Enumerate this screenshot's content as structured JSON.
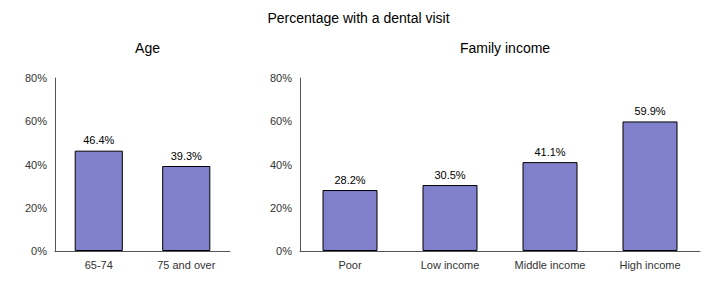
{
  "title": "Percentage with a dental visit",
  "chart_data": [
    {
      "type": "bar",
      "title": "Age",
      "categories": [
        "65-74",
        "75 and over"
      ],
      "values": [
        46.4,
        39.3
      ],
      "value_labels": [
        "46.4%",
        "39.3%"
      ],
      "data_labels": true,
      "color": "#8080cc",
      "ylim": [
        0,
        80
      ],
      "yticks": [
        {
          "value": 0,
          "label": "0%"
        },
        {
          "value": 20,
          "label": "20%"
        },
        {
          "value": 40,
          "label": "40%"
        },
        {
          "value": 60,
          "label": "60%"
        },
        {
          "value": 80,
          "label": "80%"
        }
      ],
      "grid": false
    },
    {
      "type": "bar",
      "title": "Family income",
      "categories": [
        "Poor",
        "Low income",
        "Middle income",
        "High income"
      ],
      "values": [
        28.2,
        30.5,
        41.1,
        59.9
      ],
      "value_labels": [
        "28.2%",
        "30.5%",
        "41.1%",
        "59.9%"
      ],
      "data_labels": true,
      "color": "#8080cc",
      "ylim": [
        0,
        80
      ],
      "yticks": [
        {
          "value": 0,
          "label": "0%"
        },
        {
          "value": 20,
          "label": "20%"
        },
        {
          "value": 40,
          "label": "40%"
        },
        {
          "value": 60,
          "label": "60%"
        },
        {
          "value": 80,
          "label": "80%"
        }
      ],
      "grid": false
    }
  ]
}
